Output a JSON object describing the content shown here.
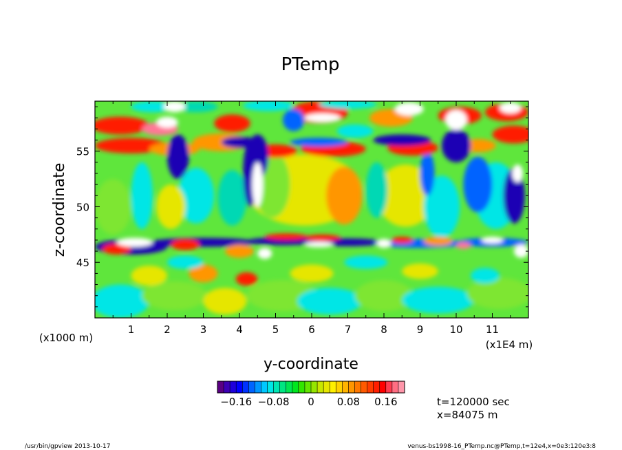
{
  "chart_data": {
    "type": "heatmap",
    "title": "PTemp",
    "xlabel": "y-coordinate",
    "ylabel": "z-coordinate",
    "x_units": "(x1E4 m)",
    "y_units": "(x1000 m)",
    "xlim": [
      0,
      12
    ],
    "ylim": [
      40,
      59.5
    ],
    "xticks": [
      1,
      2,
      3,
      4,
      5,
      6,
      7,
      8,
      9,
      10,
      11
    ],
    "yticks": [
      45,
      50,
      55
    ],
    "colorbar": {
      "range": [
        -0.2,
        0.2
      ],
      "tick_values": [
        -0.16,
        -0.08,
        0,
        0.08,
        0.16
      ],
      "tick_labels": [
        "−0.16",
        "−0.08",
        "0",
        "0.08",
        "0.16"
      ],
      "colors": [
        "#5a0082",
        "#3c00b4",
        "#1e00dc",
        "#0000ff",
        "#0032ff",
        "#0064ff",
        "#0096ff",
        "#00c8ff",
        "#00e6e6",
        "#00e6b4",
        "#00e682",
        "#00e650",
        "#00e61e",
        "#32e600",
        "#64e600",
        "#96e600",
        "#c8e600",
        "#e6e600",
        "#fff000",
        "#ffd200",
        "#ffb400",
        "#ff9600",
        "#ff7800",
        "#ff5a00",
        "#ff3c00",
        "#ff1e00",
        "#ff0000",
        "#ff3c50",
        "#ff6e82",
        "#ff96aa"
      ]
    },
    "info_lines": [
      "t=120000 sec",
      "x=84075 m"
    ],
    "footer_left": "/usr/bin/gpview   2013-10-17",
    "footer_right": "venus-bs1998-16_PTemp.nc@PTemp,t=12e4,x=0e3:120e3:8"
  }
}
